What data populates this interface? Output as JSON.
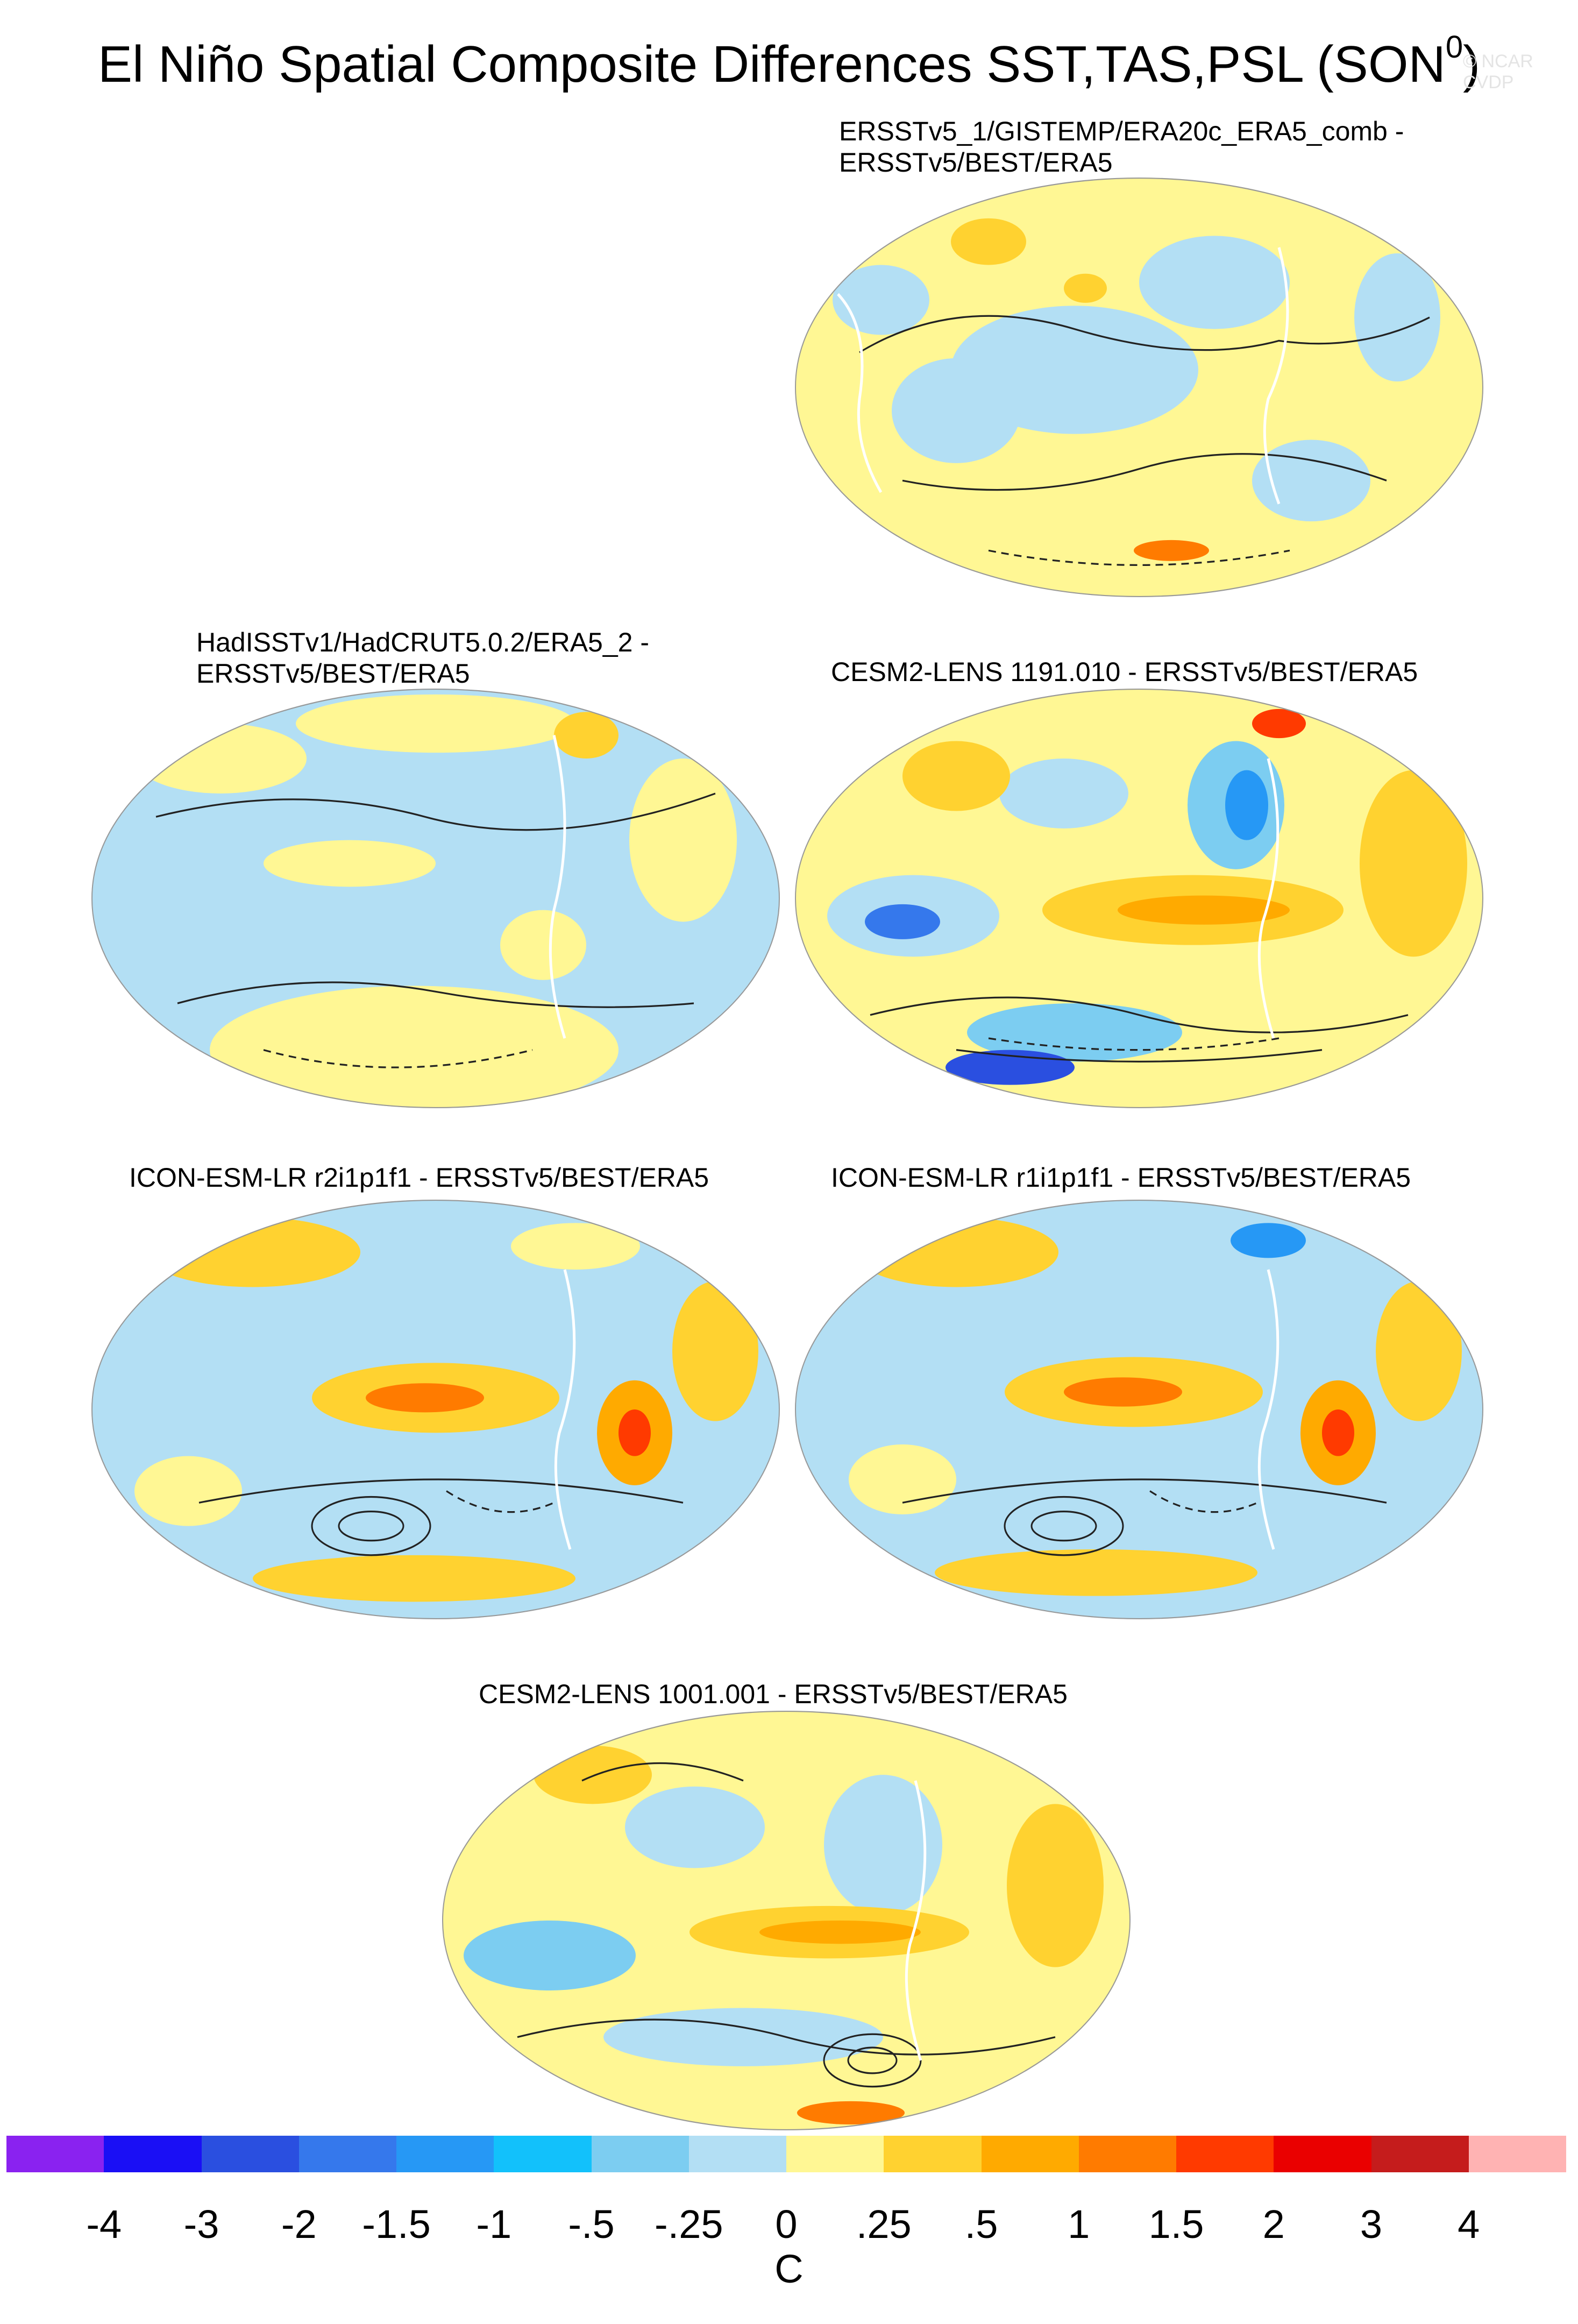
{
  "title": "El Niño Spatial Composite Differences SST,TAS,PSL (SON",
  "title_superscript": "0",
  "title_closing": ")",
  "watermark": "© NCAR CVDP",
  "panels": [
    {
      "label_line1": "ERSSTv5_1/GISTEMP/ERA20c_ERA5_comb -",
      "label_line2": "ERSSTv5/BEST/ERA5",
      "dominant": "yellow"
    },
    {
      "label_line1": "HadISSTv1/HadCRUT5.0.2/ERA5_2 -",
      "label_line2": "ERSSTv5/BEST/ERA5",
      "dominant": "blue"
    },
    {
      "label_line1": "CESM2-LENS 1191.010 - ERSSTv5/BEST/ERA5",
      "label_line2": "",
      "dominant": "mixed"
    },
    {
      "label_line1": "ICON-ESM-LR r2i1p1f1 - ERSSTv5/BEST/ERA5",
      "label_line2": "",
      "dominant": "mixed-warm"
    },
    {
      "label_line1": "ICON-ESM-LR r1i1p1f1 - ERSSTv5/BEST/ERA5",
      "label_line2": "",
      "dominant": "mixed-warm"
    },
    {
      "label_line1": "CESM2-LENS 1001.001 - ERSSTv5/BEST/ERA5",
      "label_line2": "",
      "dominant": "yellow-warm"
    }
  ],
  "colorbar": {
    "colors": [
      "#8a22f0",
      "#1a0ff5",
      "#2a4fe0",
      "#3578ec",
      "#2698f5",
      "#12c1fb",
      "#7ccdf1",
      "#b3dff4",
      "#fff794",
      "#ffd230",
      "#ffaa00",
      "#ff7b00",
      "#ff3a00",
      "#ea0000",
      "#c51c1c",
      "#ffb3b3"
    ],
    "tick_labels": [
      "-4",
      "-3",
      "-2",
      "-1.5",
      "-1",
      "-.5",
      "-.25",
      "0",
      ".25",
      ".5",
      "1",
      "1.5",
      "2",
      "3",
      "4"
    ],
    "units": "C"
  }
}
